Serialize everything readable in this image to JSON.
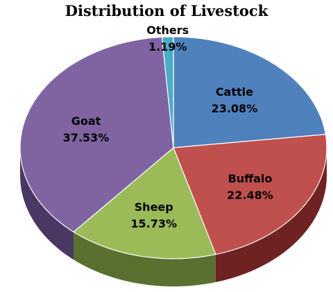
{
  "chart_data": {
    "type": "pie",
    "title": "Distribution of Livestock",
    "three_d": true,
    "slices": [
      {
        "label": "Cattle",
        "value": 23.08,
        "value_label": "23.08%",
        "color": "#4f81bd",
        "side_color": "#2e4d72"
      },
      {
        "label": "Buffalo",
        "value": 22.48,
        "value_label": "22.48%",
        "color": "#c0504d",
        "side_color": "#6e2322"
      },
      {
        "label": "Sheep",
        "value": 15.73,
        "value_label": "15.73%",
        "color": "#9bbb59",
        "side_color": "#5a7030"
      },
      {
        "label": "Goat",
        "value": 37.53,
        "value_label": "37.53%",
        "color": "#8064a2",
        "side_color": "#4a3862"
      },
      {
        "label": "Others",
        "value": 1.19,
        "value_label": "1.19%",
        "color": "#4bacc6",
        "side_color": "#2a6a7c"
      }
    ]
  }
}
